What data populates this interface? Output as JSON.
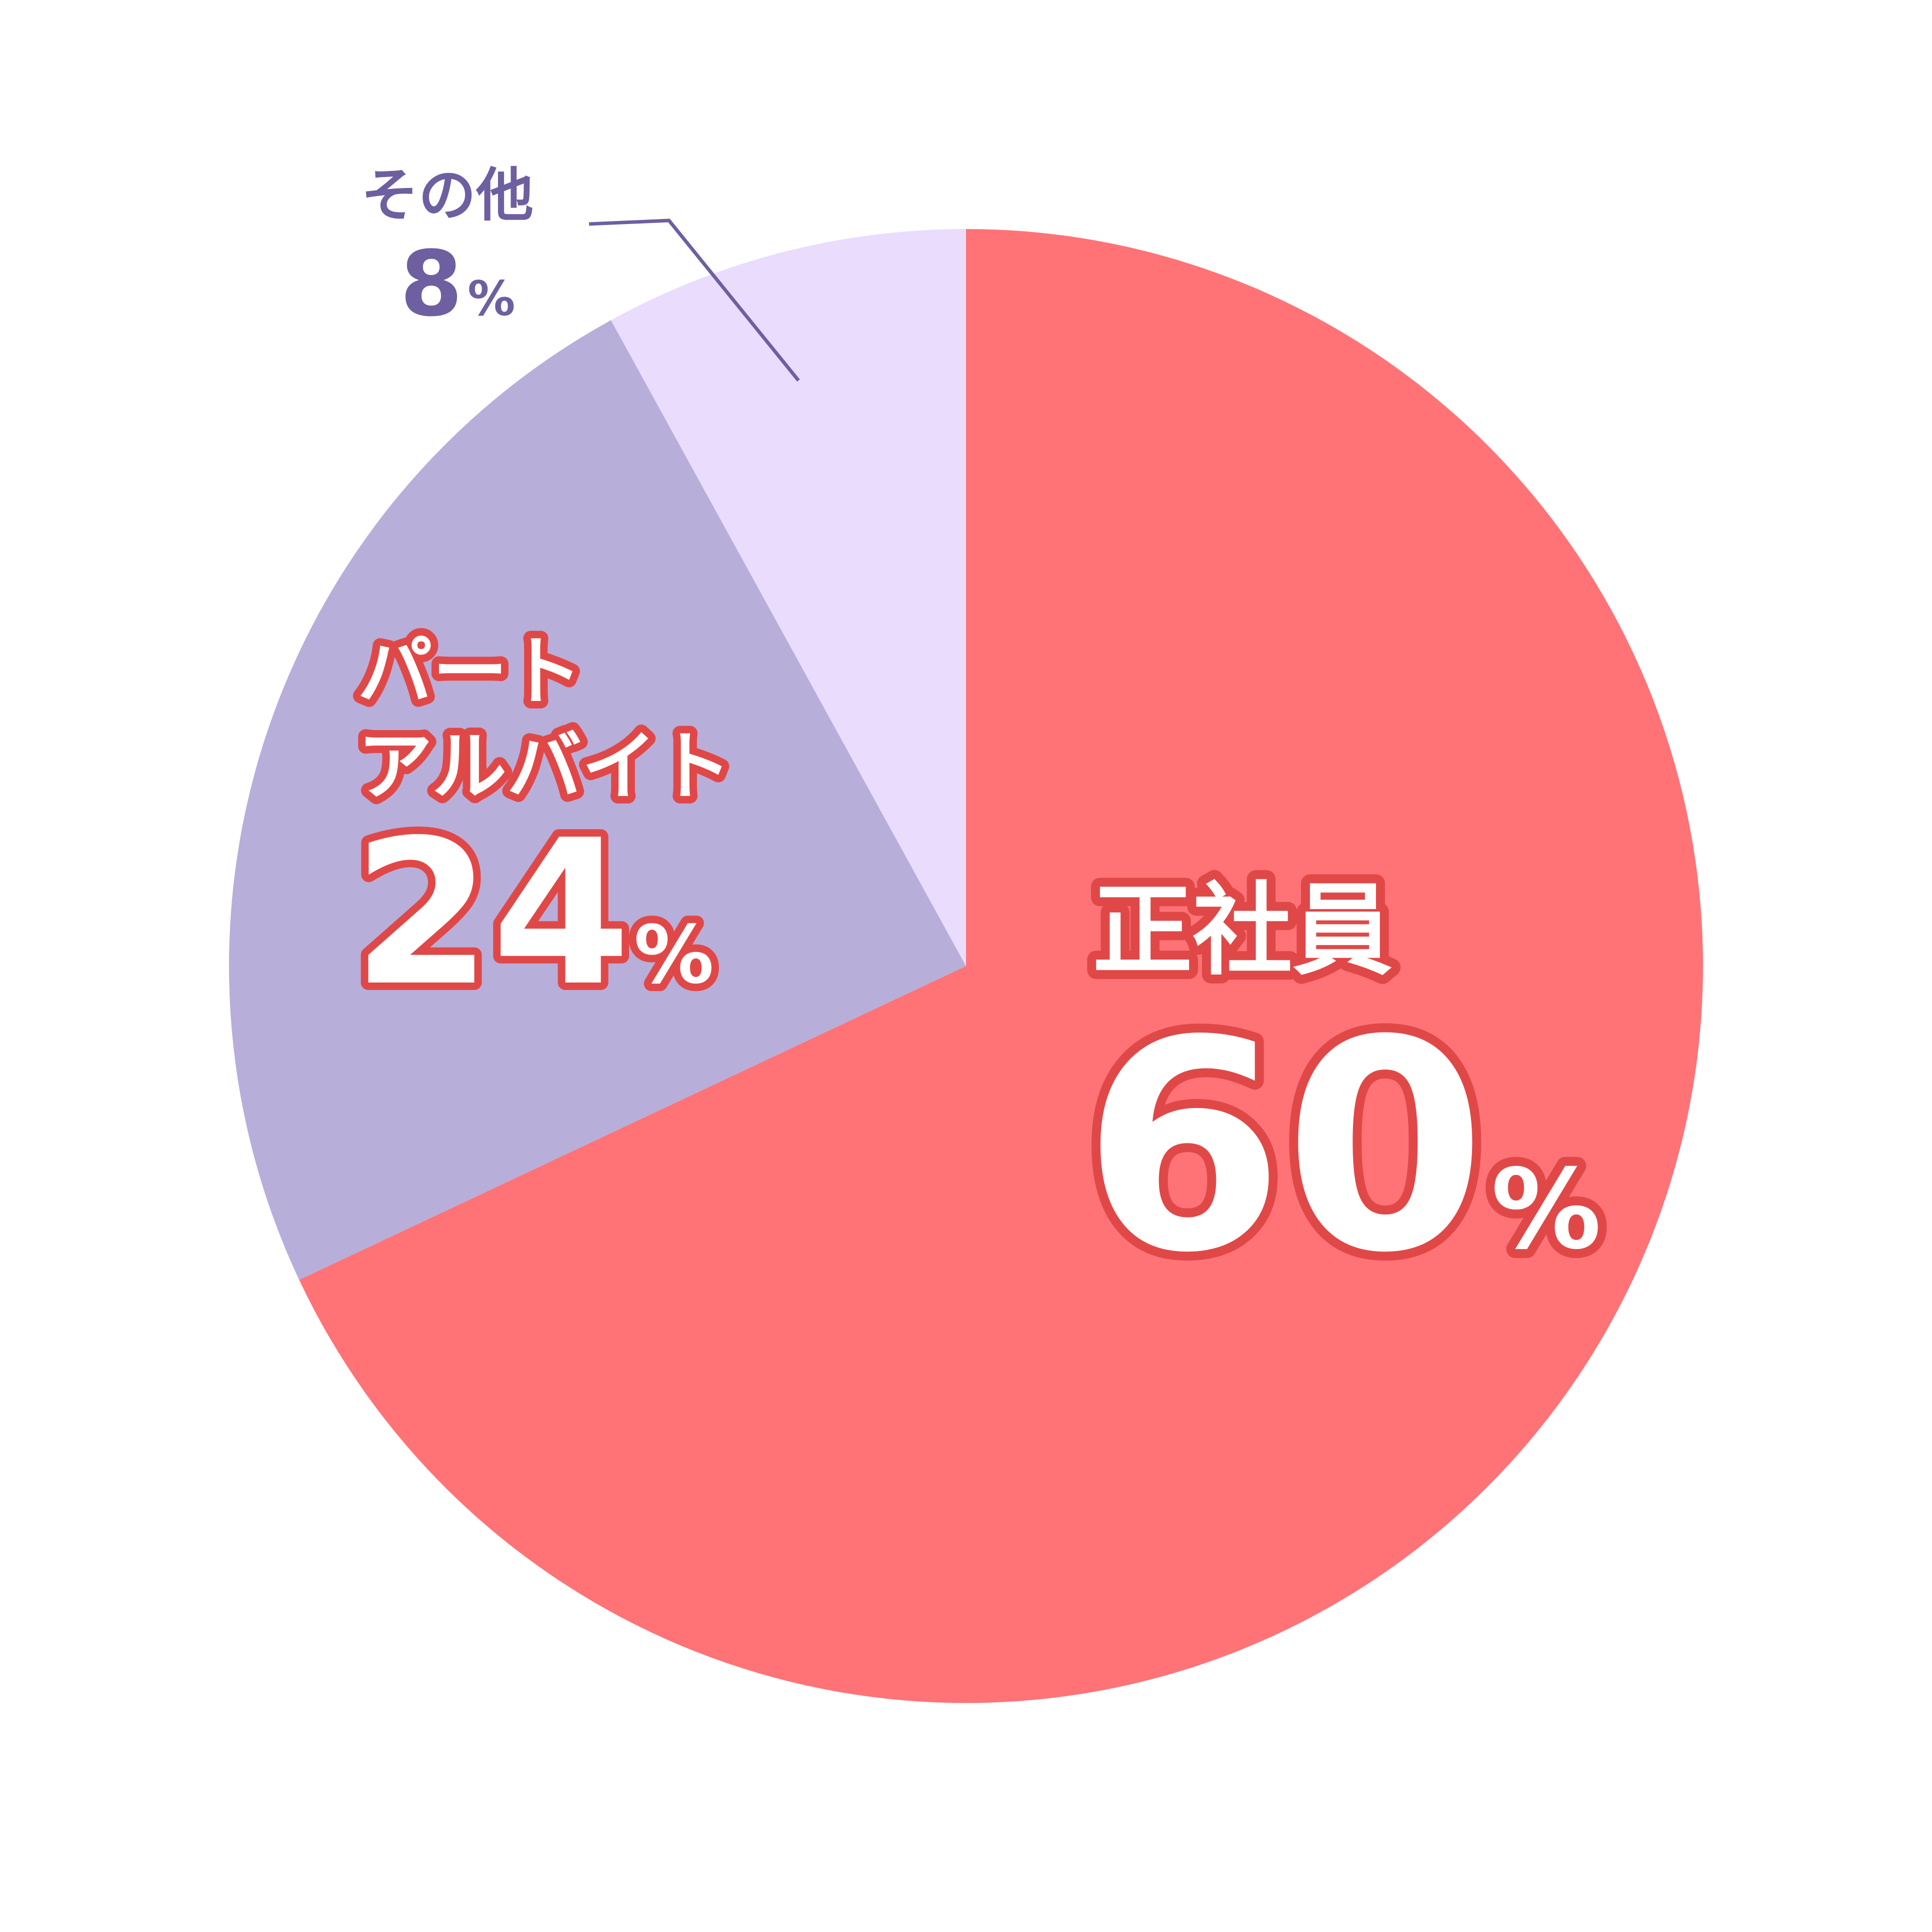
{
  "chart_data": {
    "type": "pie",
    "start": "top",
    "direction": "clockwise",
    "slices": [
      {
        "label": "正社員",
        "value": 60,
        "display": "60",
        "unit": "%",
        "color": "#FF7377"
      },
      {
        "label_lines": [
          "パート",
          "アルバイト"
        ],
        "value": 24,
        "display": "24",
        "unit": "%",
        "color": "#B8AEDA"
      },
      {
        "label": "その他",
        "value": 8,
        "display": "8",
        "unit": "%",
        "color": "#EADCFD"
      }
    ],
    "label_outline_color": "#E04848",
    "other_label_color": "#6E5FA0"
  }
}
